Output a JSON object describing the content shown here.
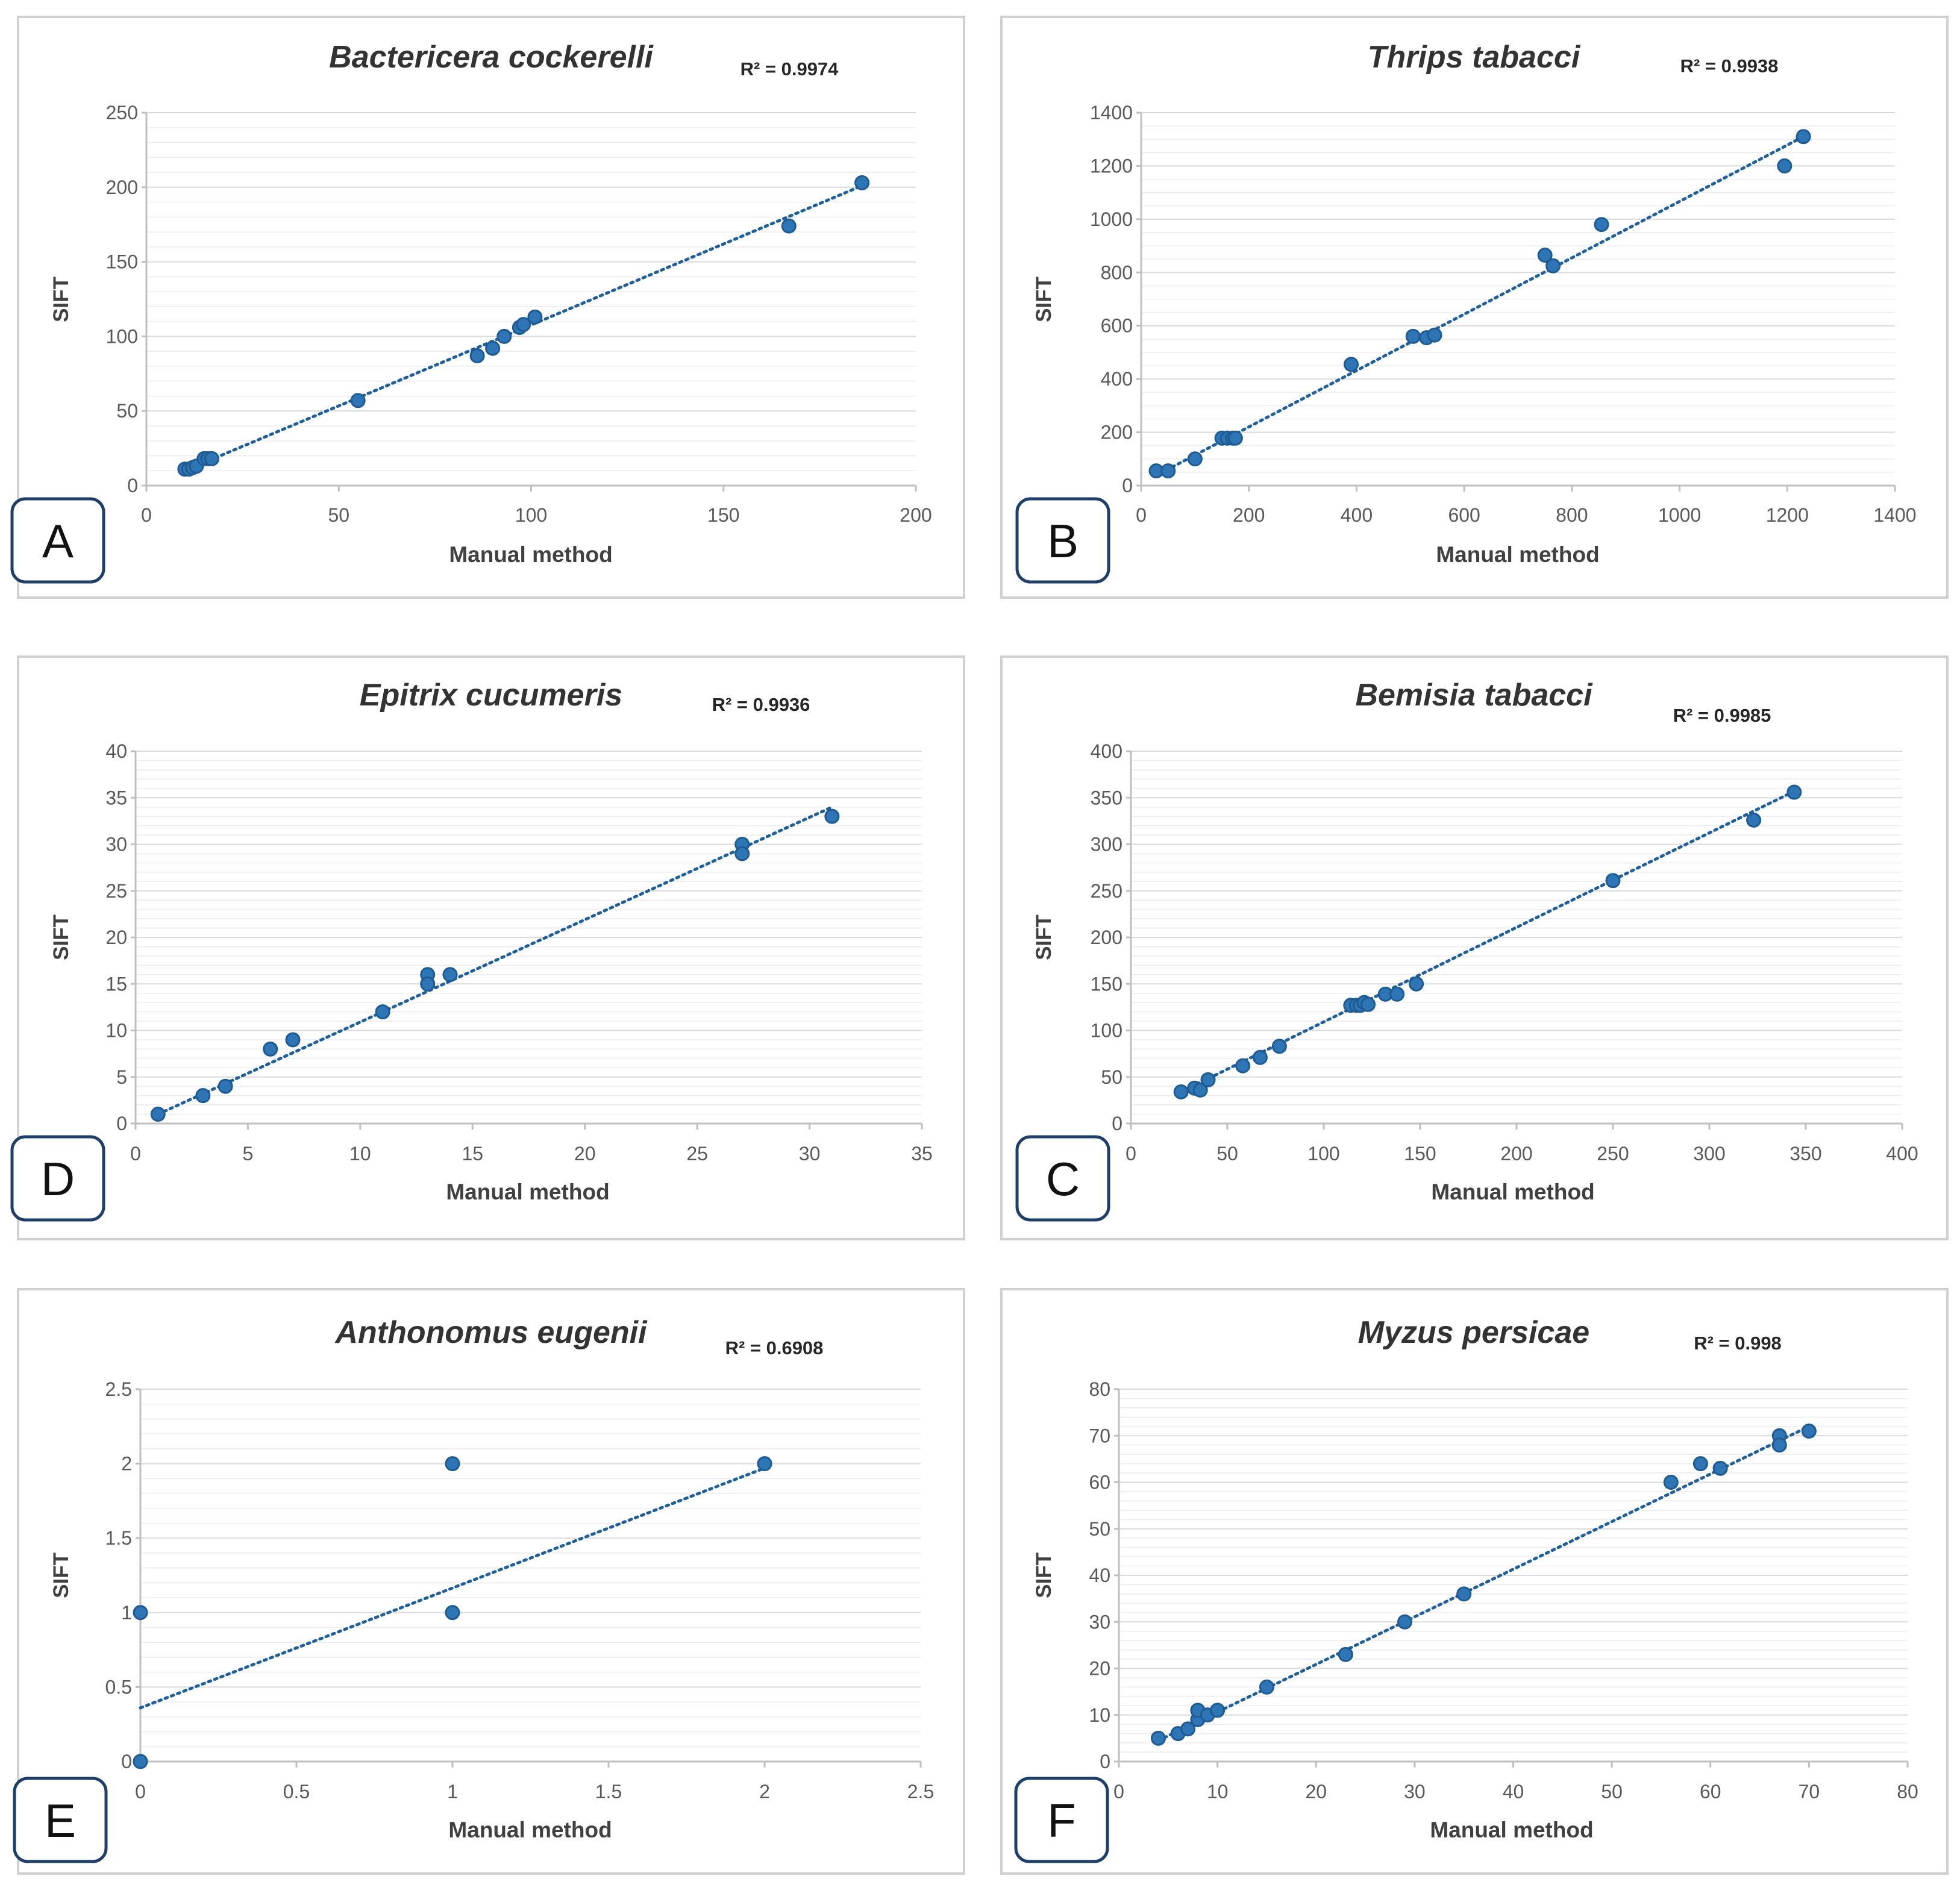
{
  "chart_data": [
    {
      "id": "A",
      "type": "scatter",
      "title": "Bactericera cockerelli",
      "r2": "R² = 0.9974",
      "xlabel": "Manual method",
      "ylabel": "SIFT",
      "panel_label": "A",
      "xlim": [
        0,
        200
      ],
      "ylim": [
        0,
        250
      ],
      "xticks": [
        0,
        50,
        100,
        150,
        200
      ],
      "xtick_labels": [
        "0",
        "50",
        "100",
        "150",
        "200"
      ],
      "yticks": [
        0,
        50,
        100,
        150,
        200,
        250
      ],
      "ytick_labels": [
        "0",
        "50",
        "100",
        "150",
        "200",
        "250"
      ],
      "minor_y_step": 10,
      "trendline": [
        [
          10,
          10
        ],
        [
          186,
          201
        ]
      ],
      "x": [
        10,
        11,
        12,
        13,
        15,
        16,
        17,
        55,
        86,
        90,
        93,
        97,
        98,
        101,
        167,
        186
      ],
      "y": [
        11,
        11,
        12,
        13,
        18,
        18,
        18,
        57,
        87,
        92,
        100,
        106,
        108,
        113,
        174,
        203
      ]
    },
    {
      "id": "B",
      "type": "scatter",
      "title": "Thrips tabacci",
      "r2": "R² = 0.9938",
      "xlabel": "Manual method",
      "ylabel": "SIFT",
      "panel_label": "B",
      "xlim": [
        0,
        1400
      ],
      "ylim": [
        0,
        1400
      ],
      "xticks": [
        0,
        200,
        400,
        600,
        800,
        1000,
        1200,
        1400
      ],
      "xtick_labels": [
        "0",
        "200",
        "400",
        "600",
        "800",
        "1000",
        "1200",
        "1400"
      ],
      "yticks": [
        0,
        200,
        400,
        600,
        800,
        1000,
        1200,
        1400
      ],
      "ytick_labels": [
        "0",
        "200",
        "400",
        "600",
        "800",
        "1000",
        "1200",
        "1400"
      ],
      "minor_y_step": 50,
      "trendline": [
        [
          25,
          35
        ],
        [
          1230,
          1310
        ]
      ],
      "x": [
        28,
        50,
        100,
        150,
        160,
        170,
        175,
        390,
        505,
        530,
        545,
        750,
        765,
        855,
        1195,
        1230
      ],
      "y": [
        55,
        55,
        100,
        178,
        178,
        178,
        178,
        455,
        560,
        555,
        565,
        865,
        825,
        980,
        1200,
        1310
      ]
    },
    {
      "id": "D",
      "type": "scatter",
      "title": "Epitrix cucumeris",
      "r2": "R² = 0.9936",
      "xlabel": "Manual method",
      "ylabel": "SIFT",
      "panel_label": "D",
      "xlim": [
        0,
        35
      ],
      "ylim": [
        0,
        40
      ],
      "xticks": [
        0,
        5,
        10,
        15,
        20,
        25,
        30,
        35
      ],
      "xtick_labels": [
        "0",
        "5",
        "10",
        "15",
        "20",
        "25",
        "30",
        "35"
      ],
      "yticks": [
        0,
        5,
        10,
        15,
        20,
        25,
        30,
        35,
        40
      ],
      "ytick_labels": [
        "0",
        "5",
        "10",
        "15",
        "20",
        "25",
        "30",
        "35",
        "40"
      ],
      "minor_y_step": 1,
      "trendline": [
        [
          1,
          1
        ],
        [
          31,
          34
        ]
      ],
      "x": [
        1,
        3,
        4,
        6,
        7,
        11,
        13,
        13,
        14,
        27,
        27,
        31
      ],
      "y": [
        1,
        3,
        4,
        8,
        9,
        12,
        16,
        15,
        16,
        30,
        29,
        33
      ]
    },
    {
      "id": "C",
      "type": "scatter",
      "title": "Bemisia tabacci",
      "r2": "R² = 0.9985",
      "xlabel": "Manual method",
      "ylabel": "SIFT",
      "panel_label": "C",
      "xlim": [
        0,
        400
      ],
      "ylim": [
        0,
        400
      ],
      "xticks": [
        0,
        50,
        100,
        150,
        200,
        250,
        300,
        350,
        400
      ],
      "xtick_labels": [
        "0",
        "50",
        "100",
        "150",
        "200",
        "250",
        "300",
        "350",
        "400"
      ],
      "yticks": [
        0,
        50,
        100,
        150,
        200,
        250,
        300,
        350,
        400
      ],
      "ytick_labels": [
        "0",
        "50",
        "100",
        "150",
        "200",
        "250",
        "300",
        "350",
        "400"
      ],
      "minor_y_step": 10,
      "trendline": [
        [
          25,
          33
        ],
        [
          345,
          358
        ]
      ],
      "x": [
        26,
        33,
        36,
        40,
        58,
        67,
        77,
        114,
        117,
        119,
        121,
        123,
        132,
        138,
        148,
        250,
        323,
        344
      ],
      "y": [
        34,
        38,
        36,
        47,
        62,
        71,
        83,
        127,
        127,
        127,
        130,
        128,
        139,
        139,
        150,
        261,
        326,
        356
      ]
    },
    {
      "id": "E",
      "type": "scatter",
      "title": "Anthonomus eugenii",
      "r2": "R² = 0.6908",
      "xlabel": "Manual method",
      "ylabel": "SIFT",
      "panel_label": "E",
      "xlim": [
        0,
        2.5
      ],
      "ylim": [
        0,
        2.5
      ],
      "xticks": [
        0,
        0.5,
        1,
        1.5,
        2,
        2.5
      ],
      "xtick_labels": [
        "0",
        "0.5",
        "1",
        "1.5",
        "2",
        "2.5"
      ],
      "yticks": [
        0,
        0.5,
        1,
        1.5,
        2,
        2.5
      ],
      "ytick_labels": [
        "0",
        "0.5",
        "1",
        "1.5",
        "2",
        "2.5"
      ],
      "minor_y_step": 0.1,
      "trendline": [
        [
          0,
          0.36
        ],
        [
          2,
          1.97
        ]
      ],
      "x": [
        0,
        0,
        1,
        1,
        2
      ],
      "y": [
        0,
        1,
        2,
        1,
        2
      ]
    },
    {
      "id": "F",
      "type": "scatter",
      "title": "Myzus persicae",
      "r2": "R² = 0.998",
      "xlabel": "Manual method",
      "ylabel": "SIFT",
      "panel_label": "F",
      "xlim": [
        0,
        80
      ],
      "ylim": [
        0,
        80
      ],
      "xticks": [
        0,
        10,
        20,
        30,
        40,
        50,
        60,
        70,
        80
      ],
      "xtick_labels": [
        "0",
        "10",
        "20",
        "30",
        "40",
        "50",
        "60",
        "70",
        "80"
      ],
      "yticks": [
        0,
        10,
        20,
        30,
        40,
        50,
        60,
        70,
        80
      ],
      "ytick_labels": [
        "0",
        "10",
        "20",
        "30",
        "40",
        "50",
        "60",
        "70",
        "80"
      ],
      "minor_y_step": 2,
      "trendline": [
        [
          4,
          4.5
        ],
        [
          70,
          72
        ]
      ],
      "x": [
        4,
        6,
        7,
        8,
        8,
        9,
        10,
        15,
        23,
        29,
        35,
        56,
        59,
        61,
        67,
        67,
        70
      ],
      "y": [
        5,
        6,
        7,
        9,
        11,
        10,
        11,
        16,
        23,
        30,
        36,
        60,
        64,
        63,
        70,
        68,
        71
      ]
    }
  ]
}
